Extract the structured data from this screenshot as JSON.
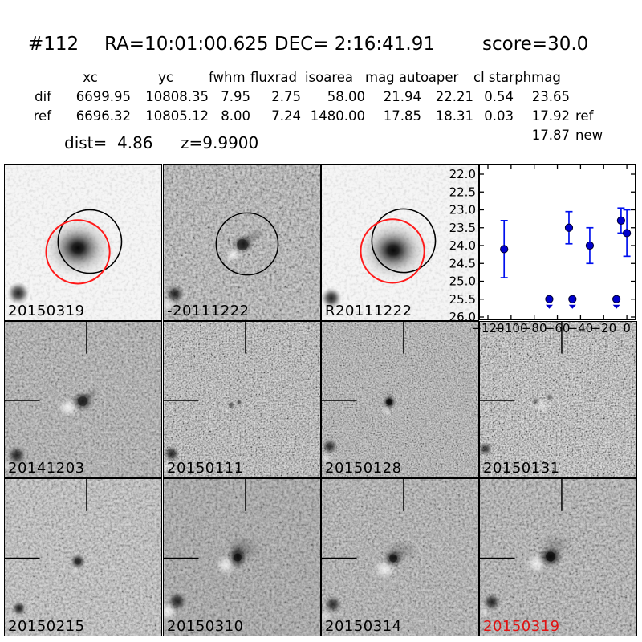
{
  "header": {
    "object_id": "#112",
    "coords": "RA=10:01:00.625 DEC= 2:16:41.91",
    "score": "score=30.0"
  },
  "table": {
    "columns": [
      "xc",
      "yc",
      "fwhm",
      "fluxrad",
      "isoarea",
      "mag auto",
      "aper",
      "cl star",
      "phmag"
    ],
    "rows": [
      {
        "label": "dif",
        "values": [
          "6699.95",
          "10808.35",
          "7.95",
          "2.75",
          "58.00",
          "21.94",
          "22.21",
          "0.54",
          "23.65"
        ],
        "suffix": ""
      },
      {
        "label": "ref",
        "values": [
          "6696.32",
          "10805.12",
          "8.00",
          "7.24",
          "1480.00",
          "17.85",
          "18.31",
          "0.03",
          "17.92"
        ],
        "suffix": "ref"
      }
    ],
    "extra_phmag_value": "17.87",
    "extra_phmag_suffix": "new",
    "dist_text": "dist=  4.86",
    "z_text": "z=9.9900"
  },
  "panels": [
    {
      "label": "20150319",
      "label_color": "#000000"
    },
    {
      "label": "-20111222",
      "label_color": "#000000"
    },
    {
      "label": "R20111222",
      "label_color": "#000000"
    },
    {
      "label": "20141203",
      "label_color": "#000000"
    },
    {
      "label": "20150111",
      "label_color": "#000000"
    },
    {
      "label": "20150128",
      "label_color": "#000000"
    },
    {
      "label": "20150131",
      "label_color": "#000000"
    },
    {
      "label": "20150215",
      "label_color": "#000000"
    },
    {
      "label": "20150310",
      "label_color": "#000000"
    },
    {
      "label": "20150314",
      "label_color": "#000000"
    },
    {
      "label": "20150319",
      "label_color": "#e11212"
    }
  ],
  "colors": {
    "aperture_black": "#000000",
    "aperture_red": "#ff1a1a",
    "alert_label_red": "#e11212",
    "marker_blue": "#0000cc",
    "errorbar_blue": "#0011ee"
  },
  "chart_data": {
    "type": "scatter",
    "title": "",
    "xlabel": "",
    "ylabel": "",
    "xlim": [
      -128,
      8
    ],
    "ylim": [
      26.0,
      22.0
    ],
    "grid": false,
    "xtick_labels": [
      "−120",
      "−100",
      "−80",
      "−60",
      "−40",
      "−20",
      "0"
    ],
    "ytick_labels": [
      "22.0",
      "22.5",
      "23.0",
      "23.5",
      "24.0",
      "24.5",
      "25.0",
      "25.5",
      "26.0"
    ],
    "series": [
      {
        "name": "detections",
        "marker": "filled-circle",
        "x": [
          -106,
          -50,
          -32,
          -5,
          0
        ],
        "y": [
          24.1,
          23.5,
          24.0,
          23.3,
          23.65
        ],
        "yerr": [
          0.8,
          0.45,
          0.5,
          0.35,
          0.65
        ]
      },
      {
        "name": "upper-limits",
        "marker": "circle-with-down-caret",
        "x": [
          -67,
          -47,
          -9
        ],
        "y": [
          25.5,
          25.5,
          25.5
        ]
      }
    ]
  }
}
